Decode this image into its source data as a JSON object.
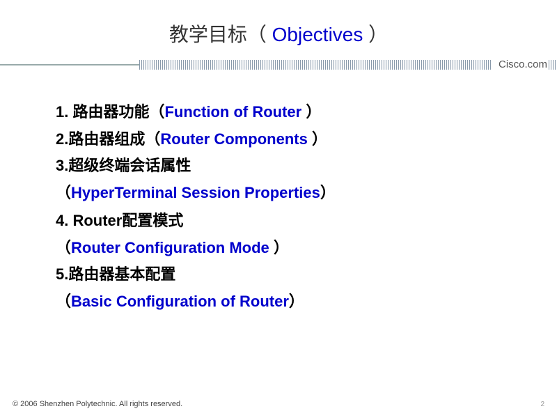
{
  "title": {
    "cn": "教学目标（",
    "en": " Objectives ",
    "close": "）"
  },
  "brand": "Cisco.com",
  "items": [
    {
      "num": "1. ",
      "cn": "路由器功能（",
      "en": "Function of Router ",
      "close": "）"
    },
    {
      "num": "2.",
      "cn": "路由器组成（",
      "en": "Router Components ",
      "close": "）"
    },
    {
      "num": "3.",
      "cn": "超级终端会话属性"
    },
    {
      "sub_open": "（",
      "sub_en": "HyperTerminal Session Properties",
      "sub_close": "）"
    },
    {
      "num": "4. ",
      "cn_pre": "",
      "en_lead": "Router",
      "cn": "配置模式"
    },
    {
      "sub_open": "（",
      "sub_en": "Router Configuration Mode ",
      "sub_close": "）"
    },
    {
      "num": "5.",
      "cn": "路由器基本配置"
    },
    {
      "sub_open": "（",
      "sub_en": "Basic Configuration of Router",
      "sub_close": "）"
    }
  ],
  "footer": {
    "copyright": "© 2006     Shenzhen Polytechnic. All rights reserved.",
    "page": "2"
  },
  "style": {
    "title_fontsize": 28,
    "body_fontsize": 22,
    "en_color": "#0000cc",
    "cn_color": "#000000",
    "background": "#ffffff",
    "divider_color": "#8899aa"
  }
}
